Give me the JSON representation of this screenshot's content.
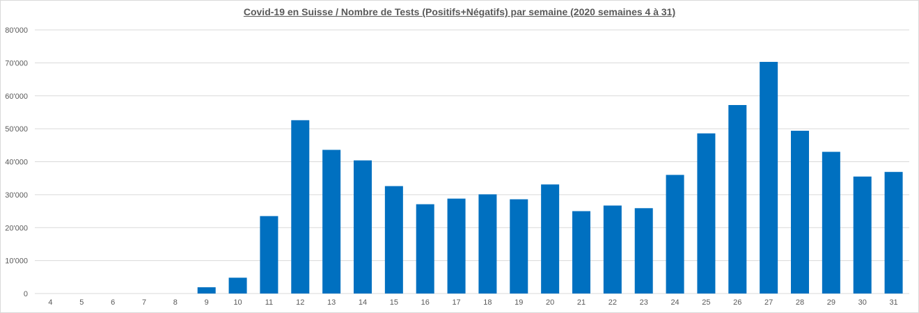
{
  "chart_data": {
    "type": "bar",
    "title": "Covid-19 en Suisse / Nombre de Tests (Positifs+Négatifs) par semaine (2020 semaines 4 à 31)",
    "xlabel": "",
    "ylabel": "",
    "categories": [
      "4",
      "5",
      "6",
      "7",
      "8",
      "9",
      "10",
      "11",
      "12",
      "13",
      "14",
      "15",
      "16",
      "17",
      "18",
      "19",
      "20",
      "21",
      "22",
      "23",
      "24",
      "25",
      "26",
      "27",
      "28",
      "29",
      "30",
      "31"
    ],
    "values": [
      0,
      0,
      0,
      0,
      0,
      1900,
      4800,
      23500,
      52600,
      43600,
      40400,
      32600,
      27100,
      28800,
      30100,
      28600,
      33100,
      25000,
      26700,
      25900,
      36000,
      48600,
      57200,
      70300,
      49400,
      43000,
      35500,
      36900
    ],
    "ylim": [
      0,
      80000
    ],
    "yticks": [
      0,
      10000,
      20000,
      30000,
      40000,
      50000,
      60000,
      70000,
      80000
    ],
    "ytick_labels": [
      "0",
      "10'000",
      "20'000",
      "30'000",
      "40'000",
      "50'000",
      "60'000",
      "70'000",
      "80'000"
    ],
    "bar_color": "#0070c0",
    "grid": true,
    "legend": "none"
  }
}
